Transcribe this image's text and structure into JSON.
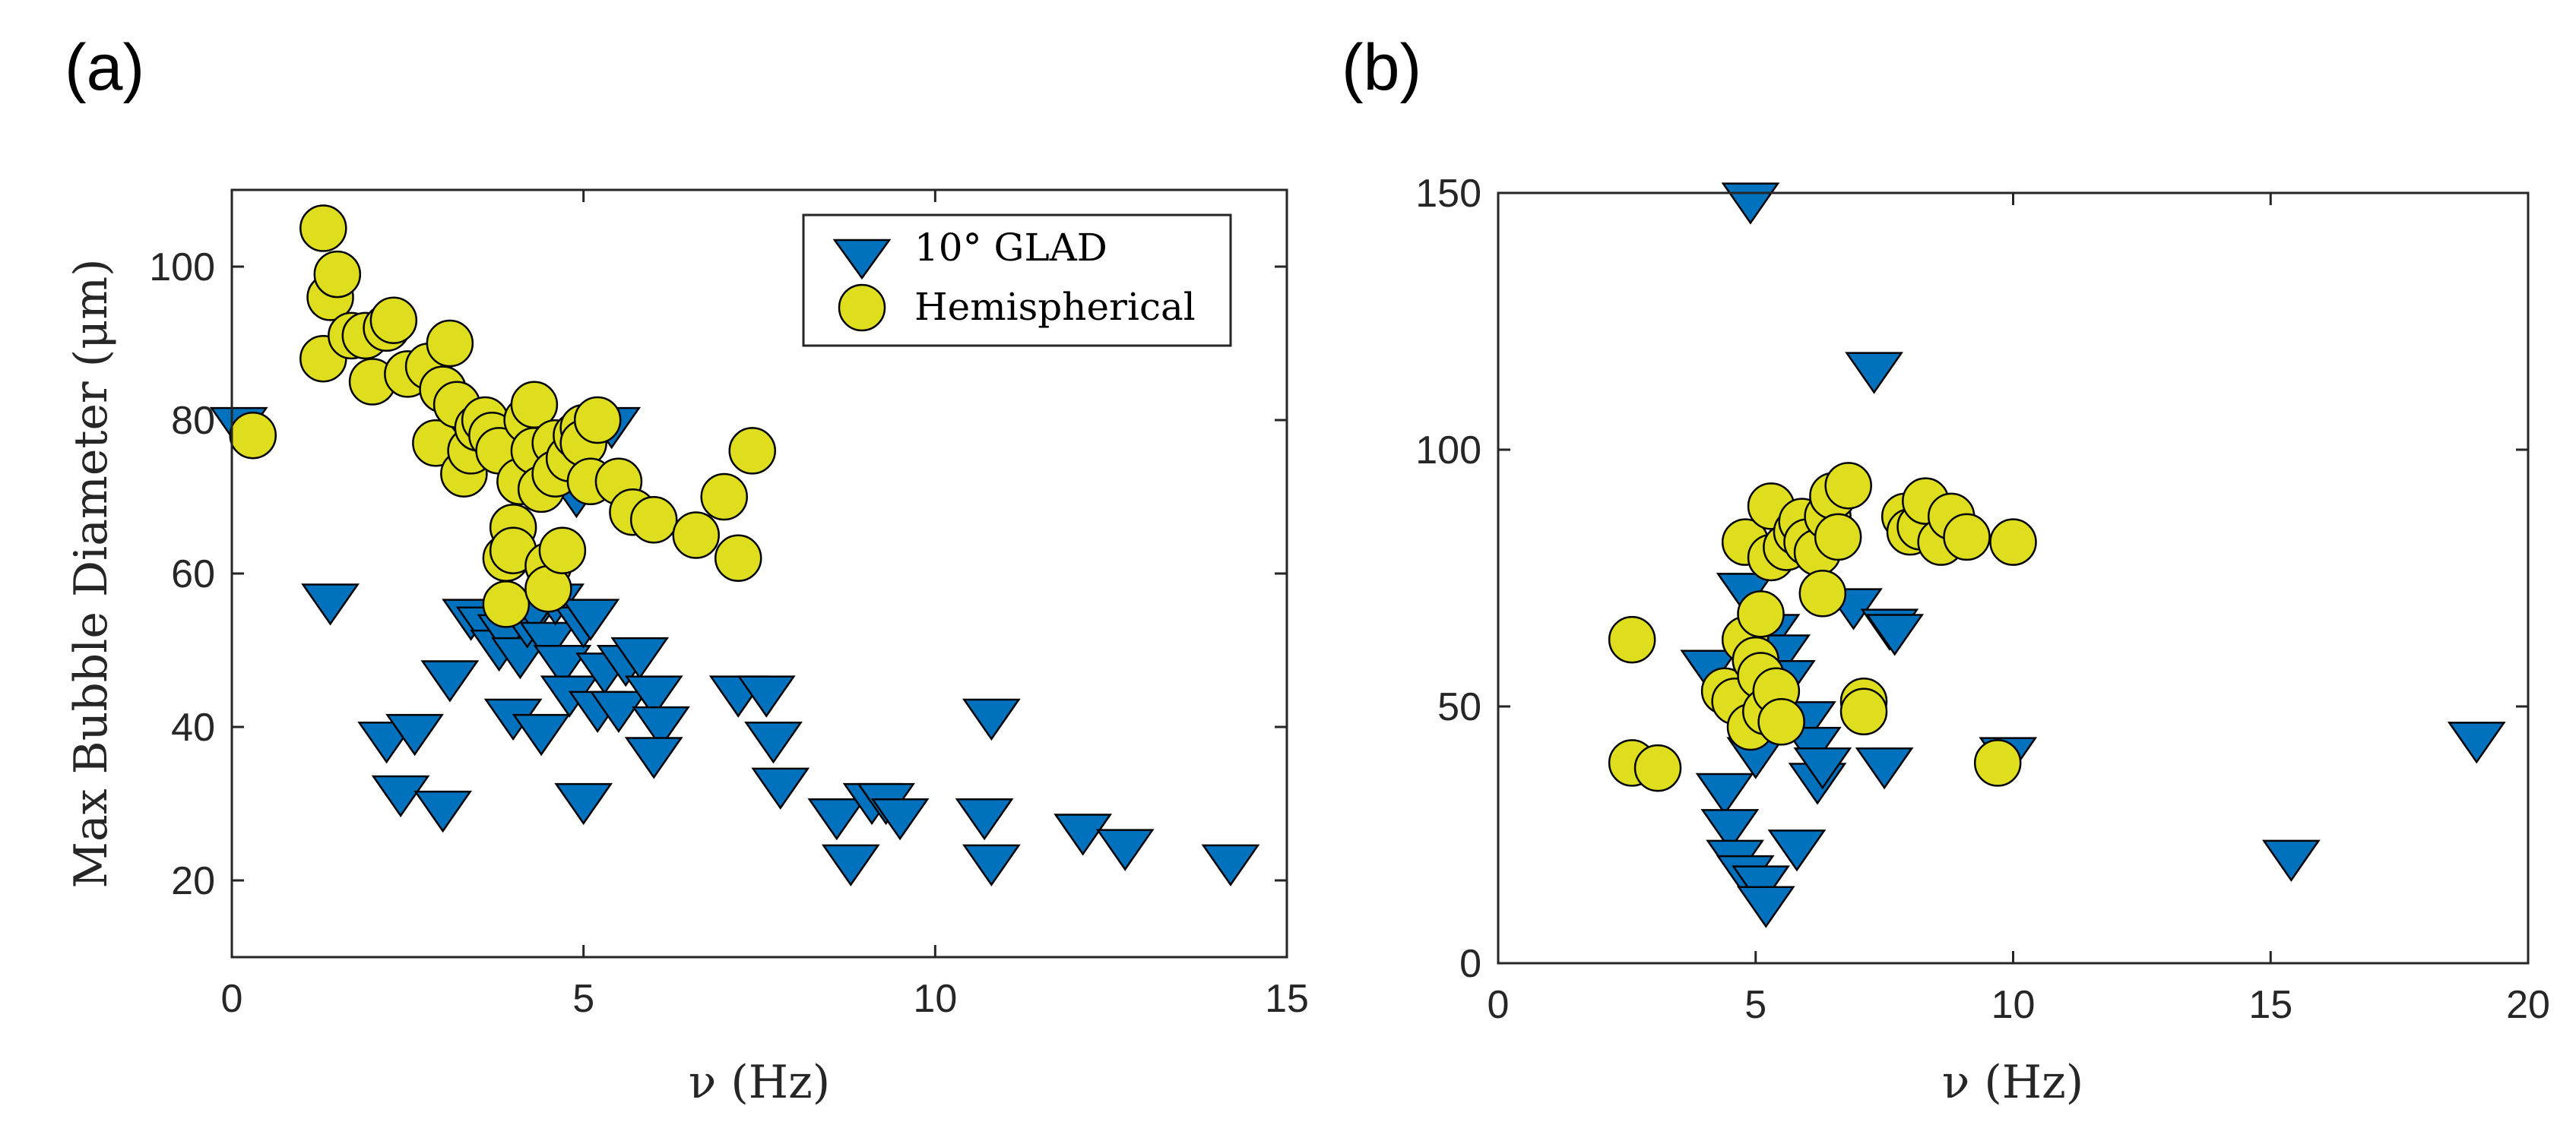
{
  "chart_data": [
    {
      "type": "scatter",
      "panel_label": "(a)",
      "xlabel": "ν (Hz)",
      "ylabel": "Max Bubble Diameter (μm)",
      "xlim": [
        0,
        15
      ],
      "ylim": [
        10,
        110
      ],
      "xticks": [
        0,
        5,
        10,
        15
      ],
      "yticks": [
        20,
        40,
        60,
        80,
        100
      ],
      "legend": {
        "position": "top-right",
        "entries": [
          "10° GLAD",
          "Hemispherical"
        ]
      },
      "series": [
        {
          "name": "10° GLAD",
          "marker": "triangle-down",
          "color": "#0072BD",
          "points": [
            [
              0.1,
              79
            ],
            [
              1.4,
              56
            ],
            [
              2.2,
              38
            ],
            [
              2.4,
              31
            ],
            [
              2.6,
              39
            ],
            [
              3.0,
              29
            ],
            [
              3.1,
              46
            ],
            [
              3.4,
              54
            ],
            [
              3.6,
              53
            ],
            [
              3.8,
              50
            ],
            [
              3.9,
              52
            ],
            [
              4.0,
              41
            ],
            [
              4.1,
              49
            ],
            [
              4.2,
              53
            ],
            [
              4.3,
              55
            ],
            [
              4.4,
              39
            ],
            [
              4.5,
              51
            ],
            [
              4.6,
              56
            ],
            [
              4.7,
              48
            ],
            [
              4.8,
              44
            ],
            [
              4.9,
              70
            ],
            [
              5.0,
              30
            ],
            [
              5.0,
              53
            ],
            [
              5.1,
              54
            ],
            [
              5.2,
              42
            ],
            [
              5.3,
              47
            ],
            [
              5.4,
              79
            ],
            [
              5.5,
              42
            ],
            [
              5.6,
              48
            ],
            [
              5.8,
              49
            ],
            [
              6.0,
              44
            ],
            [
              6.1,
              40
            ],
            [
              6.0,
              36
            ],
            [
              7.2,
              44
            ],
            [
              7.6,
              44
            ],
            [
              7.7,
              38
            ],
            [
              7.8,
              32
            ],
            [
              8.6,
              28
            ],
            [
              8.8,
              22
            ],
            [
              9.1,
              30
            ],
            [
              9.3,
              30
            ],
            [
              9.5,
              28
            ],
            [
              10.7,
              28
            ],
            [
              10.8,
              22
            ],
            [
              10.8,
              41
            ],
            [
              12.1,
              26
            ],
            [
              12.7,
              24
            ],
            [
              14.2,
              22
            ]
          ]
        },
        {
          "name": "Hemispherical",
          "marker": "circle",
          "color": "#DEDE1E",
          "points": [
            [
              0.3,
              78
            ],
            [
              1.3,
              105
            ],
            [
              1.3,
              88
            ],
            [
              1.4,
              96
            ],
            [
              1.5,
              99
            ],
            [
              1.7,
              91
            ],
            [
              1.9,
              91
            ],
            [
              2.0,
              85
            ],
            [
              2.2,
              92
            ],
            [
              2.3,
              93
            ],
            [
              2.5,
              86
            ],
            [
              2.8,
              87
            ],
            [
              2.9,
              77
            ],
            [
              3.0,
              84
            ],
            [
              3.1,
              90
            ],
            [
              3.2,
              82
            ],
            [
              3.3,
              73
            ],
            [
              3.4,
              76
            ],
            [
              3.5,
              79
            ],
            [
              3.6,
              80
            ],
            [
              3.7,
              78
            ],
            [
              3.8,
              76
            ],
            [
              3.9,
              62
            ],
            [
              3.9,
              56
            ],
            [
              4.0,
              66
            ],
            [
              4.0,
              63
            ],
            [
              4.1,
              72
            ],
            [
              4.2,
              80
            ],
            [
              4.3,
              76
            ],
            [
              4.3,
              82
            ],
            [
              4.4,
              71
            ],
            [
              4.5,
              61
            ],
            [
              4.5,
              58
            ],
            [
              4.6,
              77
            ],
            [
              4.6,
              73
            ],
            [
              4.7,
              63
            ],
            [
              4.8,
              75
            ],
            [
              4.9,
              78
            ],
            [
              5.0,
              79
            ],
            [
              5.0,
              77
            ],
            [
              5.1,
              72
            ],
            [
              5.2,
              80
            ],
            [
              5.5,
              72
            ],
            [
              5.7,
              68
            ],
            [
              6.0,
              67
            ],
            [
              6.6,
              65
            ],
            [
              7.0,
              70
            ],
            [
              7.2,
              62
            ],
            [
              7.4,
              76
            ]
          ]
        }
      ]
    },
    {
      "type": "scatter",
      "panel_label": "(b)",
      "xlabel": "ν (Hz)",
      "ylabel": "",
      "xlim": [
        0,
        20
      ],
      "ylim": [
        0,
        150
      ],
      "xticks": [
        0,
        5,
        10,
        15,
        20
      ],
      "yticks": [
        0,
        50,
        100,
        150
      ],
      "series": [
        {
          "name": "10° GLAD",
          "marker": "triangle-down",
          "color": "#0072BD",
          "points": [
            [
              4.1,
              57
            ],
            [
              4.4,
              33
            ],
            [
              4.5,
              26
            ],
            [
              4.6,
              20
            ],
            [
              4.8,
              72
            ],
            [
              4.8,
              17
            ],
            [
              4.9,
              148
            ],
            [
              5.0,
              40
            ],
            [
              5.1,
              15
            ],
            [
              5.2,
              11
            ],
            [
              5.3,
              64
            ],
            [
              5.5,
              60
            ],
            [
              5.6,
              55
            ],
            [
              5.8,
              22
            ],
            [
              6.0,
              47
            ],
            [
              6.1,
              42
            ],
            [
              6.2,
              35
            ],
            [
              6.3,
              38
            ],
            [
              6.9,
              69
            ],
            [
              7.3,
              115
            ],
            [
              7.5,
              38
            ],
            [
              7.6,
              65
            ],
            [
              7.7,
              64
            ],
            [
              9.9,
              40
            ],
            [
              15.4,
              20
            ],
            [
              19.0,
              43
            ]
          ]
        },
        {
          "name": "Hemispherical",
          "marker": "circle",
          "color": "#DEDE1E",
          "points": [
            [
              2.6,
              63
            ],
            [
              2.6,
              39
            ],
            [
              3.1,
              38
            ],
            [
              4.4,
              53
            ],
            [
              4.6,
              51
            ],
            [
              4.8,
              82
            ],
            [
              4.8,
              63
            ],
            [
              4.9,
              46
            ],
            [
              5.0,
              59
            ],
            [
              5.1,
              68
            ],
            [
              5.1,
              56
            ],
            [
              5.2,
              49
            ],
            [
              5.3,
              89
            ],
            [
              5.3,
              79
            ],
            [
              5.4,
              53
            ],
            [
              5.5,
              47
            ],
            [
              5.6,
              81
            ],
            [
              5.8,
              84
            ],
            [
              5.9,
              86
            ],
            [
              6.0,
              82
            ],
            [
              6.2,
              80
            ],
            [
              6.3,
              72
            ],
            [
              6.4,
              87
            ],
            [
              6.5,
              91
            ],
            [
              6.6,
              83
            ],
            [
              6.8,
              93
            ],
            [
              7.1,
              51
            ],
            [
              7.1,
              49
            ],
            [
              7.9,
              87
            ],
            [
              8.0,
              84
            ],
            [
              8.2,
              85
            ],
            [
              8.3,
              90
            ],
            [
              8.6,
              82
            ],
            [
              8.8,
              87
            ],
            [
              9.1,
              83
            ],
            [
              9.7,
              39
            ],
            [
              10.0,
              82
            ]
          ]
        }
      ]
    }
  ]
}
